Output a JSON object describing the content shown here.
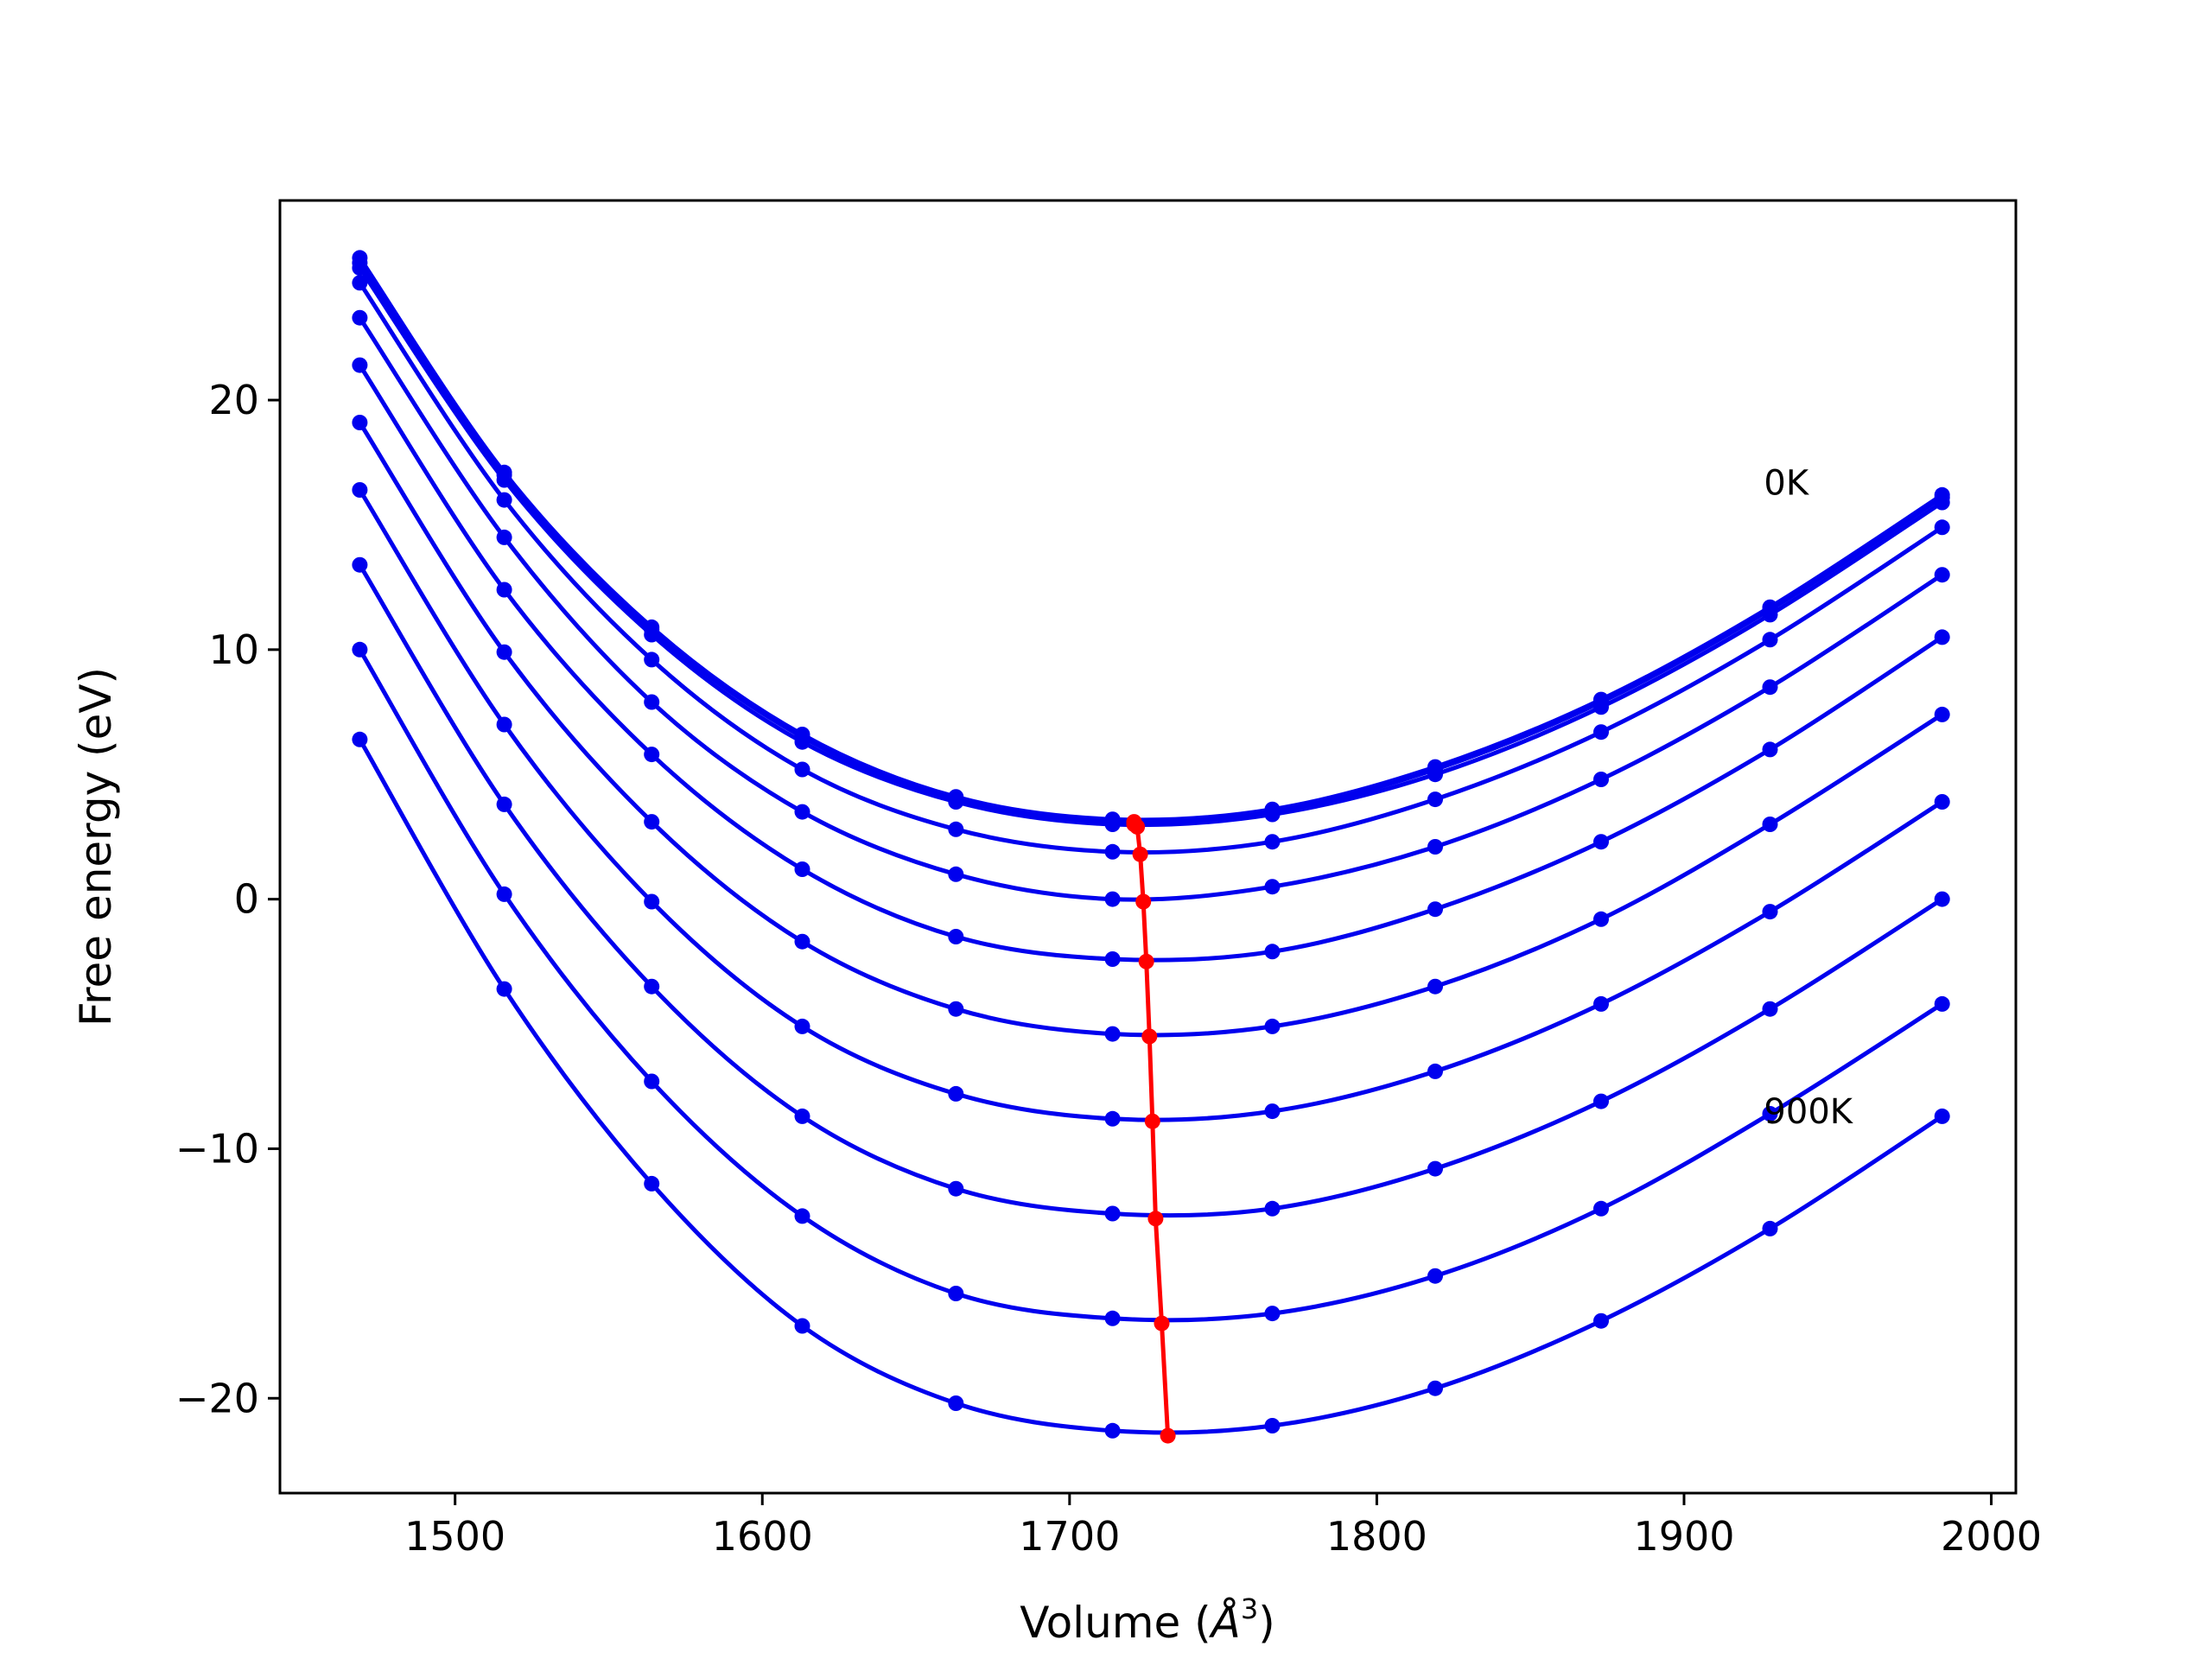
{
  "chart_data": {
    "type": "line",
    "title": "",
    "xlabel": "Volume (",
    "xlabel_unit": "Å",
    "xlabel_exponent": "3",
    "xlabel_close": ")",
    "ylabel": "Free energy (eV)",
    "xlim": [
      1443,
      2008
    ],
    "ylim": [
      -23.8,
      28.0
    ],
    "xticks": [
      1500,
      1600,
      1700,
      1800,
      1900,
      2000
    ],
    "yticks": [
      -20,
      -10,
      0,
      10,
      20
    ],
    "grid": false,
    "legend": "none",
    "annotations": [
      {
        "text": "0K",
        "x": 1926,
        "y": 16.7
      },
      {
        "text": "900K",
        "x": 1926,
        "y": -8.5
      }
    ],
    "volumes": [
      1469,
      1516,
      1564,
      1613,
      1663,
      1714,
      1766,
      1819,
      1873,
      1928,
      1984
    ],
    "series": [
      {
        "values": [
          25.7,
          17.1,
          10.9,
          6.6,
          4.1,
          3.2,
          3.6,
          5.3,
          8.0,
          11.7,
          16.2
        ]
      },
      {
        "values": [
          25.5,
          17.0,
          10.8,
          6.5,
          4.0,
          3.1,
          3.5,
          5.2,
          7.9,
          11.6,
          16.1
        ]
      },
      {
        "values": [
          25.3,
          16.8,
          10.6,
          6.3,
          3.9,
          3.0,
          3.4,
          5.0,
          7.7,
          11.4,
          15.9
        ]
      },
      {
        "values": [
          24.7,
          16.0,
          9.6,
          5.2,
          2.8,
          1.9,
          2.3,
          4.0,
          6.7,
          10.4,
          14.9
        ]
      },
      {
        "values": [
          23.3,
          14.5,
          7.9,
          3.5,
          1.0,
          0.0,
          0.5,
          2.1,
          4.8,
          8.5,
          13.0
        ]
      },
      {
        "values": [
          21.4,
          12.4,
          5.8,
          1.2,
          -1.5,
          -2.4,
          -2.1,
          -0.4,
          2.3,
          6.0,
          10.5
        ]
      },
      {
        "values": [
          19.1,
          9.9,
          3.1,
          -1.7,
          -4.4,
          -5.4,
          -5.1,
          -3.5,
          -0.8,
          3.0,
          7.4
        ]
      },
      {
        "values": [
          16.4,
          7.0,
          -0.1,
          -5.1,
          -7.8,
          -8.8,
          -8.5,
          -6.9,
          -4.2,
          -0.5,
          3.9
        ]
      },
      {
        "values": [
          13.4,
          3.8,
          -3.5,
          -8.7,
          -11.6,
          -12.6,
          -12.4,
          -10.8,
          -8.1,
          -4.4,
          0.0
        ]
      },
      {
        "values": [
          10.0,
          0.2,
          -7.3,
          -12.7,
          -15.8,
          -16.8,
          -16.6,
          -15.1,
          -12.4,
          -8.6,
          -4.2
        ]
      },
      {
        "values": [
          6.4,
          -3.6,
          -11.4,
          -17.1,
          -20.2,
          -21.3,
          -21.1,
          -19.6,
          -16.9,
          -13.2,
          -8.7
        ]
      }
    ],
    "minima": {
      "x": [
        1721,
        1721,
        1722,
        1723,
        1724,
        1725,
        1726,
        1727,
        1728,
        1730,
        1732
      ],
      "y": [
        3.1,
        3.0,
        2.9,
        1.8,
        -0.1,
        -2.5,
        -5.5,
        -8.9,
        -12.8,
        -17.0,
        -21.5
      ]
    },
    "colors": {
      "curves": "#0000ee",
      "minima": "#ff0000",
      "axes": "#000000"
    }
  }
}
